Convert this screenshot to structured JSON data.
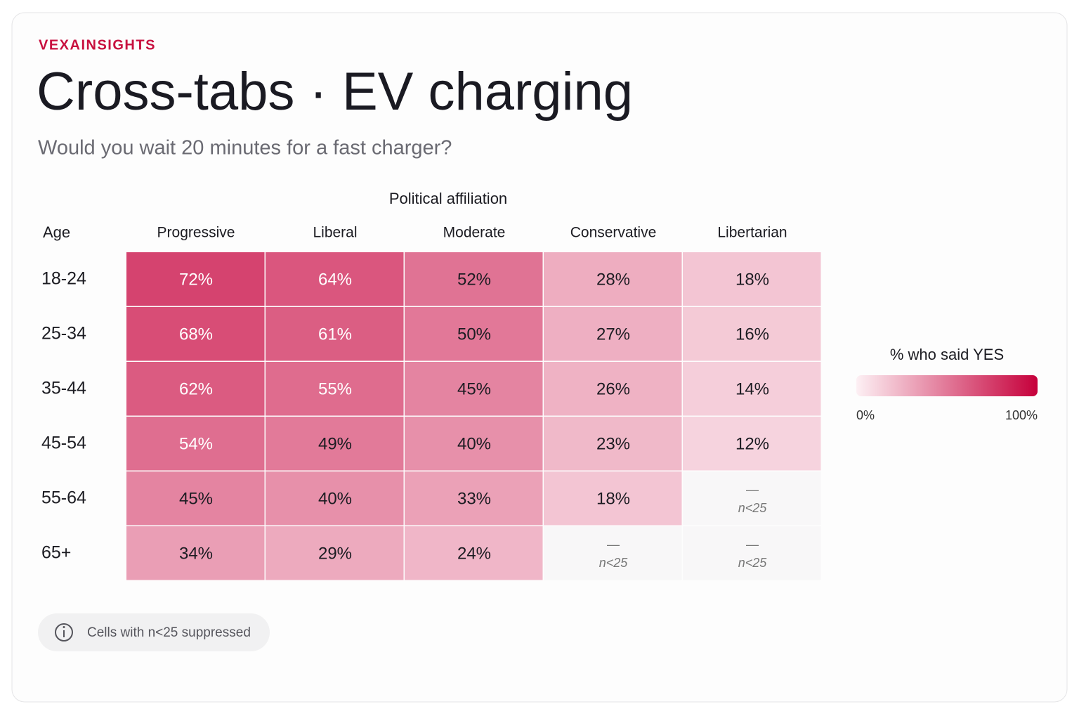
{
  "chart_data": {
    "type": "heatmap",
    "brand": "VEXAINSIGHTS",
    "title": "Cross-tabs · EV charging",
    "subtitle": "Would you wait 20 minutes for a fast charger?",
    "x_title": "Political affiliation",
    "y_title": "Age",
    "columns": [
      "Progressive",
      "Liberal",
      "Moderate",
      "Conservative",
      "Libertarian"
    ],
    "rows": [
      "18-24",
      "25-34",
      "35-44",
      "45-54",
      "55-64",
      "65+"
    ],
    "values": [
      [
        72,
        64,
        52,
        28,
        18
      ],
      [
        68,
        61,
        50,
        27,
        16
      ],
      [
        62,
        55,
        45,
        26,
        14
      ],
      [
        54,
        49,
        40,
        23,
        12
      ],
      [
        45,
        40,
        33,
        18,
        null
      ],
      [
        34,
        29,
        24,
        null,
        null
      ]
    ],
    "value_labels": [
      [
        "72%",
        "64%",
        "52%",
        "28%",
        "18%"
      ],
      [
        "68%",
        "61%",
        "50%",
        "27%",
        "16%"
      ],
      [
        "62%",
        "55%",
        "45%",
        "26%",
        "14%"
      ],
      [
        "54%",
        "49%",
        "40%",
        "23%",
        "12%"
      ],
      [
        "45%",
        "40%",
        "33%",
        "18%",
        null
      ],
      [
        "34%",
        "29%",
        "24%",
        null,
        null
      ]
    ],
    "suppressed_label": "—",
    "suppressed_note": "n<25",
    "colorbar": {
      "title": "% who said YES",
      "range": [
        0,
        100
      ],
      "ticks": [
        {
          "value": 0,
          "label": "0%"
        },
        {
          "value": 100,
          "label": "100%"
        }
      ],
      "colors": [
        "#fdf0f4",
        "#c6003b"
      ]
    },
    "footnote": "Cells with n<25 suppressed"
  }
}
